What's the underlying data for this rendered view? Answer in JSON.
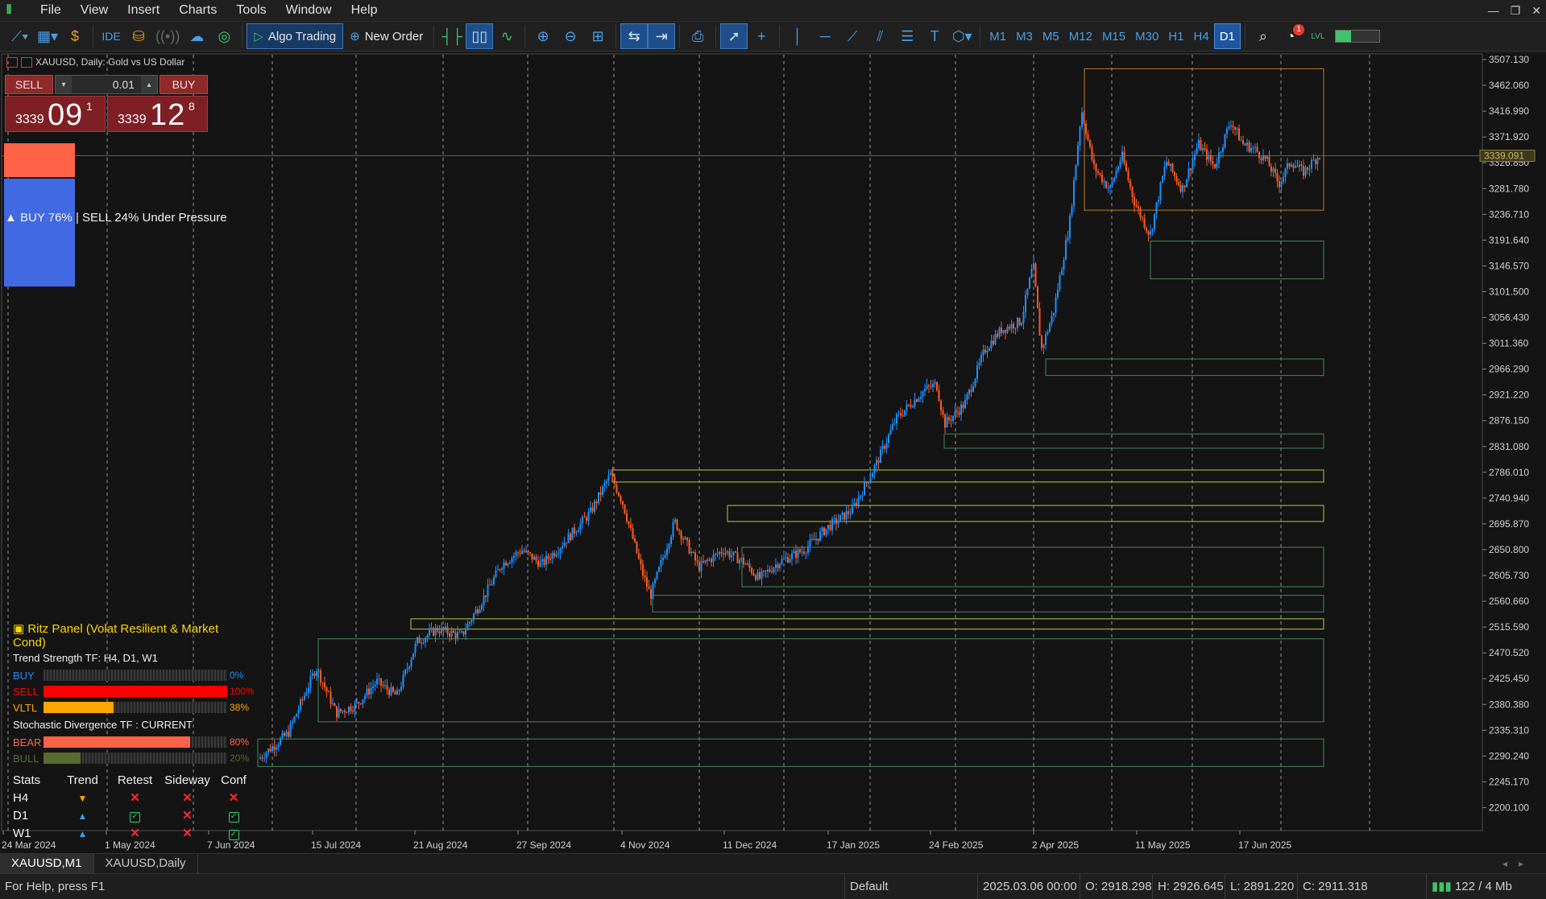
{
  "app": {
    "menu": [
      "File",
      "View",
      "Insert",
      "Charts",
      "Tools",
      "Window",
      "Help"
    ]
  },
  "toolbar": {
    "ide_label": "IDE",
    "algo_label": "Algo Trading",
    "new_order_label": "New Order",
    "timeframes": [
      "M1",
      "M3",
      "M5",
      "M12",
      "M15",
      "M30",
      "H1",
      "H4",
      "D1"
    ],
    "active_timeframe": "D1",
    "notification_count": "1",
    "lvl_label": "LVL"
  },
  "chart": {
    "title": "XAUUSD, Daily:  Gold vs US Dollar",
    "current_price_label": "3339.091",
    "price_ticks": [
      "3507.130",
      "3462.060",
      "3416.990",
      "3371.920",
      "3326.850",
      "3281.780",
      "3236.710",
      "3191.640",
      "3146.570",
      "3101.500",
      "3056.430",
      "3011.360",
      "2966.290",
      "2921.220",
      "2876.150",
      "2831.080",
      "2786.010",
      "2740.940",
      "2695.870",
      "2650.800",
      "2605.730",
      "2560.660",
      "2515.590",
      "2470.520",
      "2425.450",
      "2380.380",
      "2335.310",
      "2290.240",
      "2245.170",
      "2200.100"
    ],
    "date_ticks": [
      "24 Mar 2024",
      "1 May 2024",
      "7 Jun 2024",
      "15 Jul 2024",
      "21 Aug 2024",
      "27 Sep 2024",
      "4 Nov 2024",
      "11 Dec 2024",
      "17 Jan 2025",
      "24 Feb 2025",
      "2 Apr 2025",
      "11 May 2025",
      "17 Jun 2025"
    ],
    "colors": {
      "bull": "#1e90ff",
      "bear": "#ff5a1f",
      "zone_green": "#3f8a5a",
      "zone_yellow": "#b7c940",
      "zone_orange": "#c0782a",
      "grid": "#cfcfcf"
    }
  },
  "trade_panel": {
    "sell_label": "SELL",
    "buy_label": "BUY",
    "lot": "0.01",
    "sell_price_small": "3339",
    "sell_price_big": "09",
    "sell_price_sup": "1",
    "buy_price_small": "3339",
    "buy_price_big": "12",
    "buy_price_sup": "8"
  },
  "pressure": {
    "label": "▲ BUY 76% | SELL 24% Under Pressure",
    "buy_pct": 76,
    "sell_pct": 24
  },
  "ritz": {
    "title": "Ritz Panel (Volat Resilient & Market Cond)",
    "trend_strength_label": "Trend Strength TF: H4, D1, W1",
    "bars1": [
      {
        "label": "BUY",
        "pct": 0,
        "pct_text": "0%",
        "color": "#1e90ff"
      },
      {
        "label": "SELL",
        "pct": 100,
        "pct_text": "100%",
        "color": "#ff0000"
      },
      {
        "label": "VLTL",
        "pct": 38,
        "pct_text": "38%",
        "color": "#ffa500"
      }
    ],
    "stoch_label": "Stochastic Divergence TF : CURRENT",
    "bars2": [
      {
        "label": "BEAR",
        "pct": 80,
        "pct_text": "80%",
        "color": "#ff6347"
      },
      {
        "label": "BULL",
        "pct": 20,
        "pct_text": "20%",
        "color": "#556b2f"
      }
    ],
    "table_headers": [
      "Stats",
      "Trend",
      "Retest",
      "Sideway",
      "Conf"
    ],
    "table_rows": [
      {
        "tf": "H4",
        "trend": "down",
        "retest": "x",
        "sideway": "x",
        "conf": "x"
      },
      {
        "tf": "D1",
        "trend": "up",
        "retest": "check",
        "sideway": "x",
        "conf": "check"
      },
      {
        "tf": "W1",
        "trend": "up",
        "retest": "x",
        "sideway": "x",
        "conf": "check"
      }
    ]
  },
  "tabs": [
    "XAUUSD,M1",
    "XAUUSD,Daily"
  ],
  "status": {
    "help": "For Help, press F1",
    "profile": "Default",
    "datetime": "2025.03.06 00:00",
    "open": "O: 2918.298",
    "high": "H: 2926.645",
    "low": "L: 2891.220",
    "close": "C: 2911.318",
    "traffic": "122 / 4 Mb"
  }
}
